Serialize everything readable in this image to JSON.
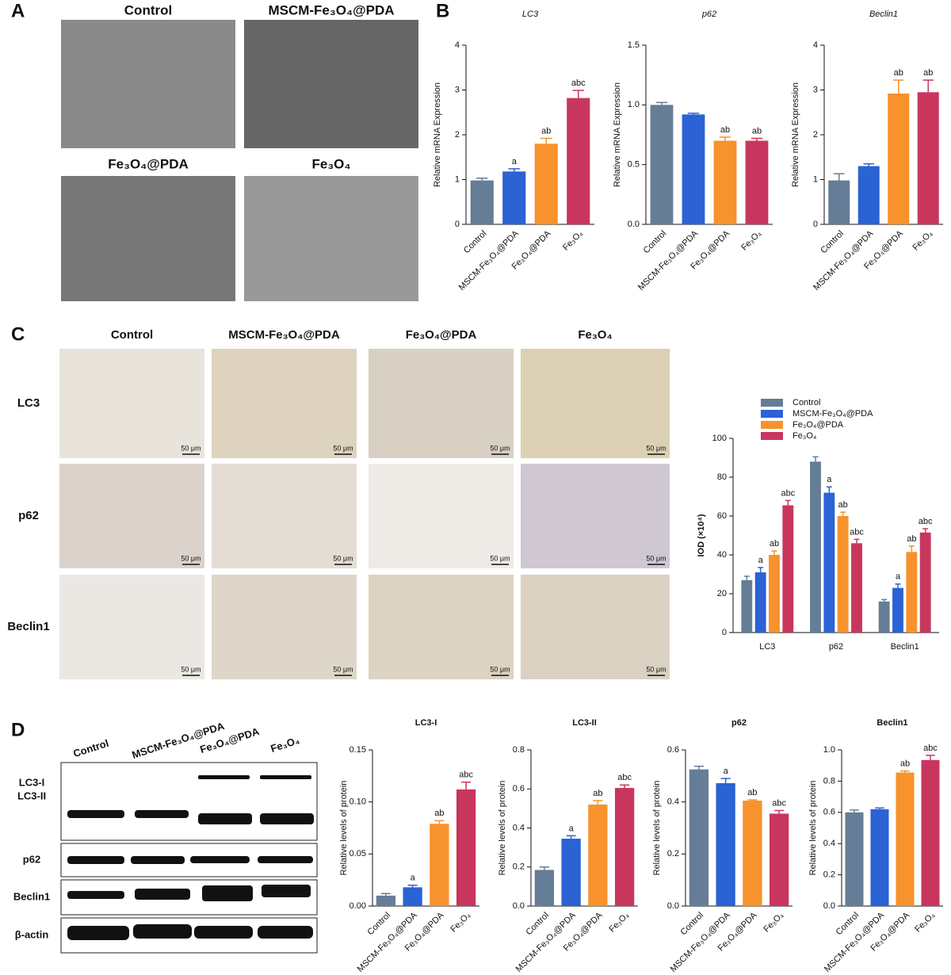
{
  "panel_labels": [
    "A",
    "B",
    "C",
    "D"
  ],
  "images_a": {
    "labels": [
      "Control",
      "MSCM-Fe₃O₄@PDA",
      "Fe₃O₄@PDA",
      "Fe₃O₄"
    ]
  },
  "images_c": {
    "columns": [
      "Control",
      "MSCM-Fe₃O₄@PDA",
      "Fe₃O₄@PDA",
      "Fe₃O₄"
    ],
    "rows": [
      "LC3",
      "p62",
      "Beclin1"
    ],
    "scale_bar": "50 μm"
  },
  "blots": {
    "columns": [
      "Control",
      "MSCM-Fe₃O₄@PDA",
      "Fe₃O₄@PDA",
      "Fe₃O₄"
    ],
    "rows": [
      "LC3-I",
      "LC3-II",
      "p62",
      "Beclin1",
      "β-actin"
    ]
  },
  "chart_data": [
    {
      "type": "bar",
      "title": "LC3",
      "y_label": "Relative mRNA Expression",
      "categories": [
        "Control",
        "MSCM-Fe₃O₄@PDA",
        "Fe₃O₄@PDA",
        "Fe₃O₄"
      ],
      "values": [
        0.98,
        1.18,
        1.8,
        2.82
      ],
      "errors": [
        0.05,
        0.06,
        0.12,
        0.17
      ],
      "annotations": [
        null,
        "a",
        "ab",
        "abc"
      ],
      "colors": [
        "#657d96",
        "#2b62d4",
        "#f7922d",
        "#c8365e"
      ],
      "ylim": [
        0,
        4
      ],
      "yticks": [
        0,
        1,
        2,
        3,
        4
      ]
    },
    {
      "type": "bar",
      "title": "p62",
      "y_label": "Relative mRNA Expression",
      "categories": [
        "Control",
        "MSCM-Fe₃O₄@PDA",
        "Fe₃O₄@PDA",
        "Fe₃O₄"
      ],
      "values": [
        1.0,
        0.92,
        0.7,
        0.7
      ],
      "errors": [
        0.02,
        0.01,
        0.03,
        0.02
      ],
      "annotations": [
        null,
        null,
        "ab",
        "ab"
      ],
      "colors": [
        "#657d96",
        "#2b62d4",
        "#f7922d",
        "#c8365e"
      ],
      "ylim": [
        0,
        1.5
      ],
      "yticks": [
        {
          "value": 0,
          "label": "0.0"
        },
        0.5,
        {
          "value": 1,
          "label": "1.0"
        },
        1.5
      ]
    },
    {
      "type": "bar",
      "title": "Beclin1",
      "y_label": "Relative mRNA Expression",
      "categories": [
        "Control",
        "MSCM-Fe₃O₄@PDA",
        "Fe₃O₄@PDA",
        "Fe₃O₄"
      ],
      "values": [
        0.98,
        1.3,
        2.92,
        2.95
      ],
      "errors": [
        0.15,
        0.05,
        0.3,
        0.27
      ],
      "annotations": [
        null,
        null,
        "ab",
        "ab"
      ],
      "colors": [
        "#657d96",
        "#2b62d4",
        "#f7922d",
        "#c8365e"
      ],
      "ylim": [
        0,
        4
      ],
      "yticks": [
        0,
        1,
        2,
        3,
        4
      ]
    },
    {
      "type": "grouped_bar",
      "y_label": "IOD (×10⁴)",
      "categories": [
        "LC3",
        "p62",
        "Beclin1"
      ],
      "ylim": [
        0,
        100
      ],
      "yticks": [
        0,
        20,
        40,
        60,
        80,
        100
      ],
      "series": [
        {
          "name": "Control",
          "color": "#657d96",
          "values": [
            27,
            88,
            16
          ],
          "errors": [
            2,
            2.5,
            1
          ],
          "annotations": [
            null,
            null,
            null
          ]
        },
        {
          "name": "MSCM-Fe₃O₄@PDA",
          "color": "#2b62d4",
          "values": [
            31,
            72,
            23
          ],
          "errors": [
            2.5,
            3,
            2
          ],
          "annotations": [
            "a",
            "a",
            "a"
          ]
        },
        {
          "name": "Fe₃O₄@PDA",
          "color": "#f7922d",
          "values": [
            40,
            60,
            41.5
          ],
          "errors": [
            2,
            2,
            3
          ],
          "annotations": [
            "ab",
            "ab",
            "ab"
          ]
        },
        {
          "name": "Fe₃O₄",
          "color": "#c8365e",
          "values": [
            65.5,
            46,
            51.5
          ],
          "errors": [
            2.5,
            2,
            2
          ],
          "annotations": [
            "abc",
            "abc",
            "abc"
          ]
        }
      ]
    },
    {
      "type": "bar",
      "title": "LC3-I",
      "y_label": "Relative levels of protein",
      "categories": [
        "Control",
        "MSCM-Fe₃O₄@PDA",
        "Fe₃O₄@PDA",
        "Fe₃O₄"
      ],
      "values": [
        0.01,
        0.018,
        0.079,
        0.112
      ],
      "errors": [
        0.002,
        0.002,
        0.003,
        0.007
      ],
      "annotations": [
        null,
        "a",
        "ab",
        "abc"
      ],
      "colors": [
        "#657d96",
        "#2b62d4",
        "#f7922d",
        "#c8365e"
      ],
      "ylim": [
        0,
        0.15
      ],
      "yticks": [
        {
          "value": 0,
          "label": "0.00"
        },
        0.05,
        {
          "value": 0.1,
          "label": "0.10"
        },
        0.15
      ]
    },
    {
      "type": "bar",
      "title": "LC3-II",
      "y_label": "Relative levels of protein",
      "categories": [
        "Control",
        "MSCM-Fe₃O₄@PDA",
        "Fe₃O₄@PDA",
        "Fe₃O₄"
      ],
      "values": [
        0.185,
        0.345,
        0.52,
        0.605
      ],
      "errors": [
        0.015,
        0.015,
        0.02,
        0.015
      ],
      "annotations": [
        null,
        "a",
        "ab",
        "abc"
      ],
      "colors": [
        "#657d96",
        "#2b62d4",
        "#f7922d",
        "#c8365e"
      ],
      "ylim": [
        0,
        0.8
      ],
      "yticks": [
        {
          "value": 0,
          "label": "0.0"
        },
        0.2,
        0.4,
        0.6,
        0.8
      ]
    },
    {
      "type": "bar",
      "title": "p62",
      "y_label": "Relative levels of protein",
      "categories": [
        "Control",
        "MSCM-Fe₃O₄@PDA",
        "Fe₃O₄@PDA",
        "Fe₃O₄"
      ],
      "values": [
        0.525,
        0.472,
        0.405,
        0.355
      ],
      "errors": [
        0.012,
        0.018,
        0.003,
        0.012
      ],
      "annotations": [
        null,
        "a",
        "ab",
        "abc"
      ],
      "colors": [
        "#657d96",
        "#2b62d4",
        "#f7922d",
        "#c8365e"
      ],
      "ylim": [
        0,
        0.6
      ],
      "yticks": [
        {
          "value": 0,
          "label": "0.0"
        },
        0.2,
        0.4,
        0.6
      ]
    },
    {
      "type": "bar",
      "title": "Beclin1",
      "y_label": "Relative levels of protein",
      "categories": [
        "Control",
        "MSCM-Fe₃O₄@PDA",
        "Fe₃O₄@PDA",
        "Fe₃O₄"
      ],
      "values": [
        0.6,
        0.62,
        0.855,
        0.935
      ],
      "errors": [
        0.015,
        0.008,
        0.01,
        0.03
      ],
      "annotations": [
        null,
        null,
        "ab",
        "abc"
      ],
      "colors": [
        "#657d96",
        "#2b62d4",
        "#f7922d",
        "#c8365e"
      ],
      "ylim": [
        0,
        1
      ],
      "yticks": [
        {
          "value": 0,
          "label": "0.0"
        },
        0.2,
        0.4,
        0.6,
        0.8,
        {
          "value": 1,
          "label": "1.0"
        }
      ]
    }
  ]
}
